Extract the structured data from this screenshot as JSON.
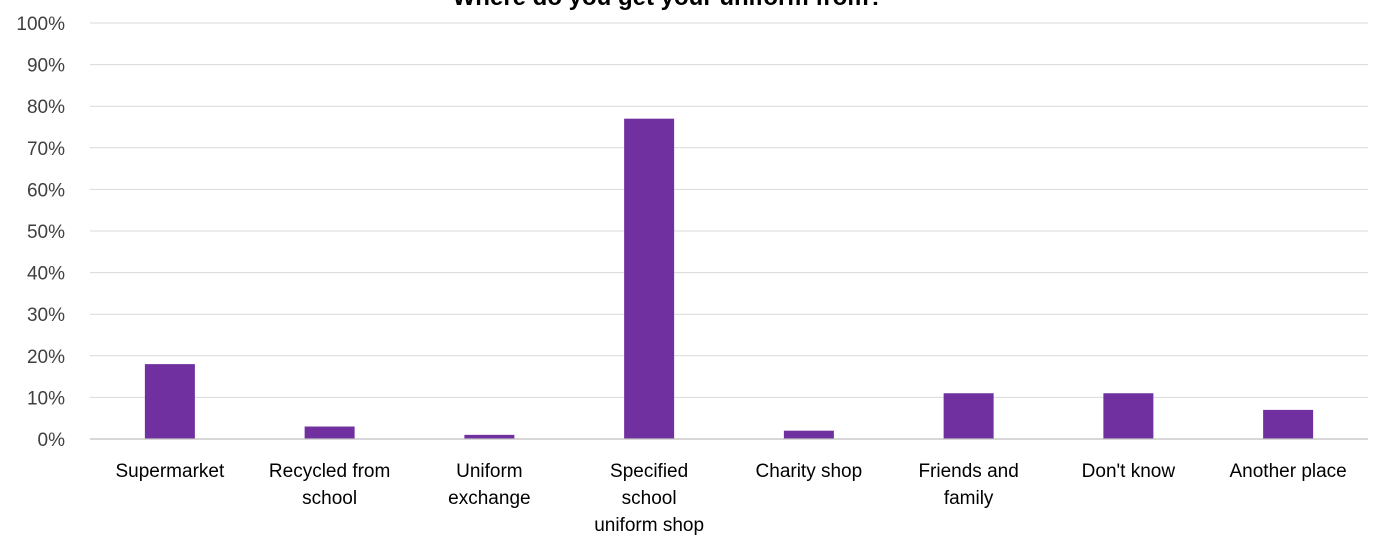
{
  "chart_data": {
    "type": "bar",
    "title": "Where do you get your uniform from?",
    "categories": [
      "Supermarket",
      "Recycled from school",
      "Uniform exchange",
      "Specified school uniform shop",
      "Charity shop",
      "Friends and family",
      "Don't know",
      "Another place"
    ],
    "category_lines": [
      [
        "Supermarket"
      ],
      [
        "Recycled from",
        "school"
      ],
      [
        "Uniform",
        "exchange"
      ],
      [
        "Specified",
        "school",
        "uniform shop"
      ],
      [
        "Charity shop"
      ],
      [
        "Friends and",
        "family"
      ],
      [
        "Don't know"
      ],
      [
        "Another place"
      ]
    ],
    "values": [
      18,
      3,
      1,
      77,
      2,
      11,
      11,
      7
    ],
    "ylim": [
      0,
      100
    ],
    "yticks": [
      "0%",
      "10%",
      "20%",
      "30%",
      "40%",
      "50%",
      "60%",
      "70%",
      "80%",
      "90%",
      "100%"
    ],
    "xlabel": "",
    "ylabel": "",
    "grid": true,
    "legend": "none",
    "bar_color": "#7030a0"
  }
}
